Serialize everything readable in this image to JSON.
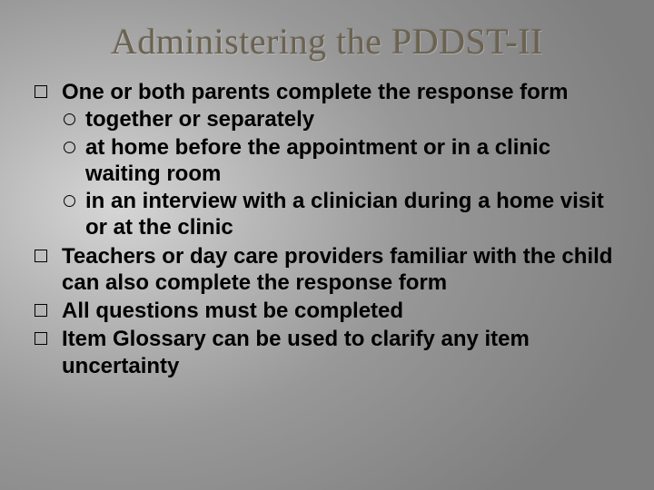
{
  "title": "Administering the PDDST-II",
  "title_color": "#6b6250",
  "title_fontsize": 40,
  "body_fontsize": 24,
  "body_fontweight": "bold",
  "background": {
    "type": "radial-gradient",
    "center": "18% 42%",
    "stops": [
      "#d6d6d6",
      "#b8b8b8",
      "#989898",
      "#7f7f7f"
    ]
  },
  "bullets": [
    {
      "text": "One or both parents complete the response form",
      "children": [
        {
          "text": "together or separately"
        },
        {
          "text": "at home before the appointment or in a clinic waiting room"
        },
        {
          "text": "in an interview with a clinician during a home visit or at the clinic"
        }
      ]
    },
    {
      "text": "Teachers or day care providers familiar with the child can also complete the response form"
    },
    {
      "text": "All questions must be completed"
    },
    {
      "text": "Item Glossary can be used to clarify any item uncertainty"
    }
  ],
  "lvl1_marker": {
    "shape": "square-outline",
    "size": 12,
    "border_color": "#000000"
  },
  "lvl2_marker": {
    "shape": "circle-outline",
    "size": 11,
    "border_color": "#000000"
  }
}
